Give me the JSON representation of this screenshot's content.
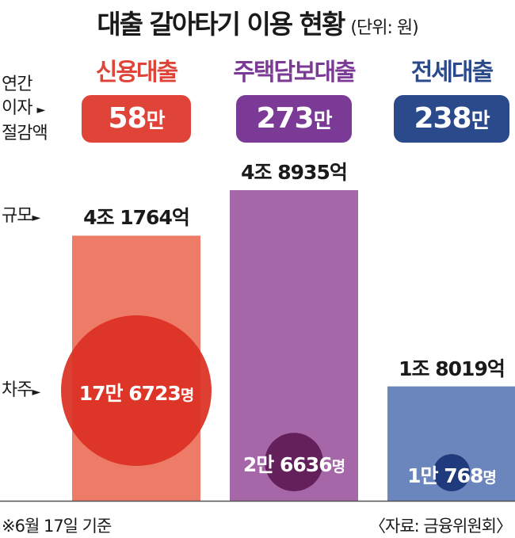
{
  "title": "대출 갈아타기 이용 현황",
  "unit": "(단위: 원)",
  "row_labels": {
    "savings": [
      "연간",
      "이자",
      "절감액"
    ],
    "scale": "규모",
    "borrowers": "차주"
  },
  "colors": {
    "credit": "#e04438",
    "mortgage": "#7b3a96",
    "jeonse": "#2b4a8c",
    "credit_bar": "#ee7b68",
    "mortgage_bar": "#a667a8",
    "jeonse_bar": "#6b85bd",
    "credit_circle": "#db2f22",
    "mortgage_circle": "#63205a",
    "jeonse_circle": "#1f3a7d"
  },
  "chart_data": {
    "type": "bar",
    "categories": [
      "신용대출",
      "주택담보대출",
      "전세대출"
    ],
    "scale_values_100m_won": [
      41764,
      48935,
      18019
    ],
    "scale_labels": [
      "4조 1764억",
      "4조 8935억",
      "1조 8019억"
    ],
    "borrowers": [
      176723,
      26636,
      10768
    ],
    "borrower_labels": [
      {
        "num": "17만 6723",
        "suffix": "명"
      },
      {
        "num": "2만 6636",
        "suffix": "명"
      },
      {
        "num": "1만 768",
        "suffix": "명"
      }
    ],
    "annual_interest_savings_10k_won": [
      58,
      273,
      238
    ],
    "savings_labels": [
      {
        "num": "58",
        "suffix": "만"
      },
      {
        "num": "273",
        "suffix": "만"
      },
      {
        "num": "238",
        "suffix": "만"
      }
    ]
  },
  "footnote": "※6월 17일 기준",
  "source": "〈자료: 금융위원회〉"
}
